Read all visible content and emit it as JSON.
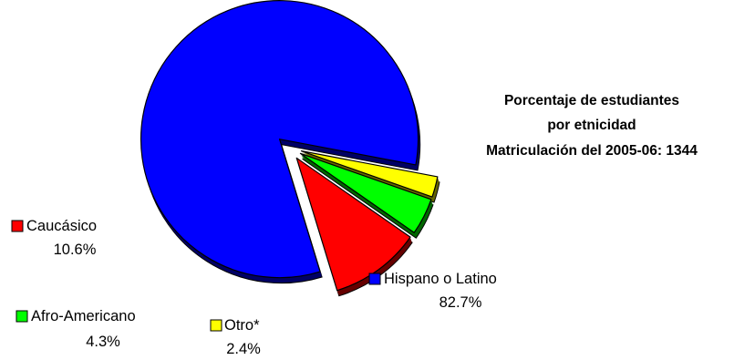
{
  "chart_data": {
    "type": "pie",
    "title_lines": [
      "Porcentaje de estudiantes",
      "por etnicidad",
      "Matriculación del 2005-06: 1344"
    ],
    "exploded": true,
    "three_d": true,
    "series": [
      {
        "name": "Hispano o Latino",
        "value": 82.7,
        "value_label": "82.7%",
        "color": "#0000ff",
        "side_color": "#000066"
      },
      {
        "name": "Otro*",
        "value": 2.4,
        "value_label": "2.4%",
        "color": "#ffff00",
        "side_color": "#666600"
      },
      {
        "name": "Afro-Americano",
        "value": 4.3,
        "value_label": "4.3%",
        "color": "#00ff00",
        "side_color": "#006600"
      },
      {
        "name": "Caucásico",
        "value": 10.6,
        "value_label": "10.6%",
        "color": "#ff0000",
        "side_color": "#660000"
      }
    ]
  }
}
